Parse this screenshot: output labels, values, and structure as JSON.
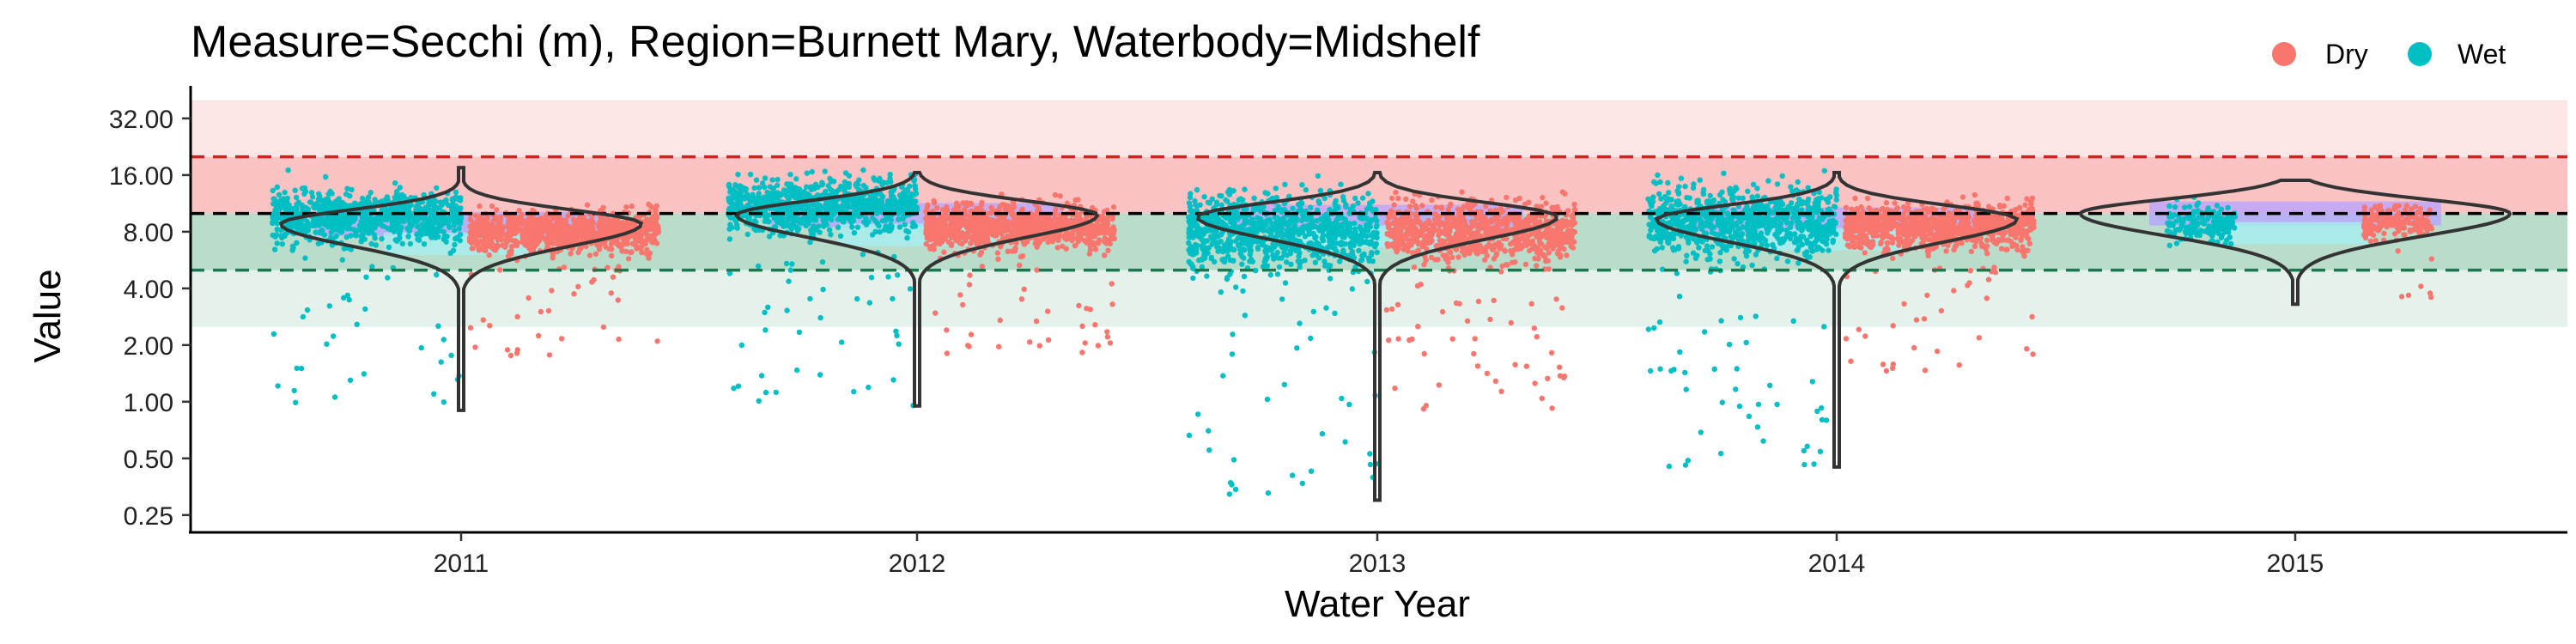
{
  "chart_data": {
    "type": "scatter",
    "title": "Measure=Secchi (m), Region=Burnett Mary, Waterbody=Midshelf",
    "xlabel": "Water Year",
    "ylabel": "Value",
    "y_scale": "log2",
    "ylim": [
      0.22,
      42
    ],
    "y_ticks": [
      "0.25",
      "0.50",
      "1.00",
      "2.00",
      "4.00",
      "8.00",
      "16.00",
      "32.00"
    ],
    "categories": [
      "2011",
      "2012",
      "2013",
      "2014",
      "2015"
    ],
    "legend": {
      "placement": "top-right",
      "entries": [
        {
          "label": "Dry",
          "color": "#F8766D"
        },
        {
          "label": "Wet",
          "color": "#00BFC4"
        }
      ]
    },
    "guideline_bands": [
      {
        "from": 2.5,
        "to": 5.0,
        "color": "#e5f2ec"
      },
      {
        "from": 5.0,
        "to": 10.0,
        "color": "#b9dccb"
      },
      {
        "from": 10.0,
        "to": 20.0,
        "color": "#f9c3c3"
      },
      {
        "from": 20.0,
        "to": 40.0,
        "color": "#fde6e6"
      }
    ],
    "reference_lines": [
      {
        "value": 20.0,
        "color": "#e41a1c"
      },
      {
        "value": 10.0,
        "color": "#000000"
      },
      {
        "value": 5.0,
        "color": "#1b7a4d"
      }
    ],
    "series": [
      {
        "name": "Wet",
        "color": "#00BFC4",
        "years": [
          {
            "year": "2011",
            "median": 9.5,
            "spread": 0.22,
            "min": 0.9,
            "max": 19
          },
          {
            "year": "2012",
            "median": 11.0,
            "spread": 0.22,
            "min": 0.95,
            "max": 17
          },
          {
            "year": "2013",
            "median": 8.0,
            "spread": 0.35,
            "min": 0.3,
            "max": 16
          },
          {
            "year": "2014",
            "median": 9.0,
            "spread": 0.3,
            "min": 0.45,
            "max": 17
          },
          {
            "year": "2015",
            "median": 9.0,
            "spread": 0.15,
            "min": 6.5,
            "max": 15
          }
        ]
      },
      {
        "name": "Dry",
        "color": "#F8766D",
        "years": [
          {
            "year": "2011",
            "median": 8.0,
            "spread": 0.18,
            "min": 1.7,
            "max": 12
          },
          {
            "year": "2012",
            "median": 8.5,
            "spread": 0.2,
            "min": 1.8,
            "max": 13
          },
          {
            "year": "2013",
            "median": 8.0,
            "spread": 0.25,
            "min": 0.9,
            "max": 13
          },
          {
            "year": "2014",
            "median": 8.5,
            "spread": 0.2,
            "min": 1.4,
            "max": 13
          },
          {
            "year": "2015",
            "median": 9.0,
            "spread": 0.15,
            "min": 3.3,
            "max": 11
          }
        ]
      }
    ],
    "violins": [
      {
        "year": "2011",
        "median": 8.8,
        "min": 0.9,
        "max": 17.5
      },
      {
        "year": "2012",
        "median": 9.8,
        "min": 0.95,
        "max": 16.5
      },
      {
        "year": "2013",
        "median": 9.6,
        "min": 0.3,
        "max": 16.5
      },
      {
        "year": "2014",
        "median": 9.3,
        "min": 0.45,
        "max": 16.5
      },
      {
        "year": "2015",
        "median": 10.0,
        "min": 3.3,
        "max": 15.0
      }
    ]
  }
}
